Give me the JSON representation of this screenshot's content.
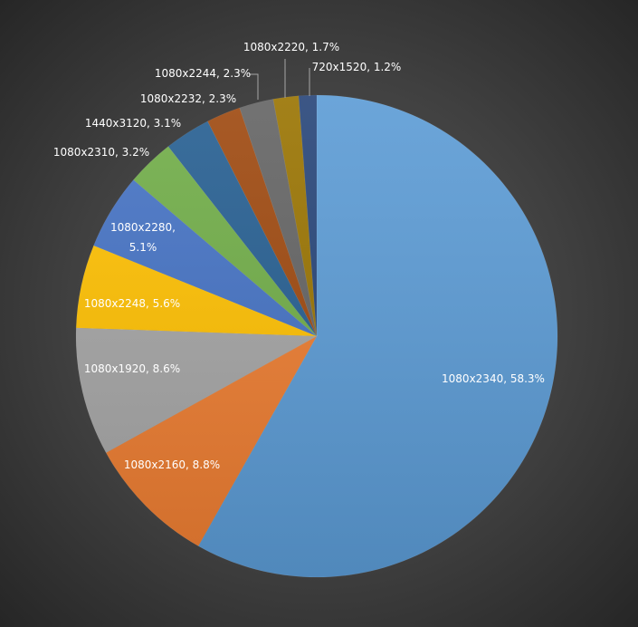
{
  "chart_data": {
    "type": "pie",
    "title": "",
    "start_angle_deg": 0,
    "direction": "clockwise",
    "slices": [
      {
        "label": "1080x2340",
        "value": 58.3,
        "data_label": "1080x2340, 58.3%",
        "color": "#5b9bd5"
      },
      {
        "label": "1080x2160",
        "value": 8.8,
        "data_label": "1080x2160, 8.8%",
        "color": "#ed7d31"
      },
      {
        "label": "1080x1920",
        "value": 8.6,
        "data_label": "1080x1920, 8.6%",
        "color": "#a5a5a5"
      },
      {
        "label": "1080x2248",
        "value": 5.6,
        "data_label": "1080x2248, 5.6%",
        "color": "#ffc000"
      },
      {
        "label": "1080x2280",
        "value": 5.1,
        "data_label": "1080x2280, 5.1%",
        "color": "#4472c4"
      },
      {
        "label": "1080x2310",
        "value": 3.2,
        "data_label": "1080x2310, 3.2%",
        "color": "#70ad47"
      },
      {
        "label": "1440x3120",
        "value": 3.1,
        "data_label": "1440x3120, 3.1%",
        "color": "#255e91"
      },
      {
        "label": "1080x2232",
        "value": 2.3,
        "data_label": "1080x2232, 2.3%",
        "color": "#9e480e"
      },
      {
        "label": "1080x2244",
        "value": 2.3,
        "data_label": "1080x2244, 2.3%",
        "color": "#636363"
      },
      {
        "label": "1080x2220",
        "value": 1.7,
        "data_label": "1080x2220, 1.7%",
        "color": "#997300"
      },
      {
        "label": "720x1520",
        "value": 1.2,
        "data_label": "720x1520, 1.2%",
        "color": "#264478"
      }
    ]
  }
}
